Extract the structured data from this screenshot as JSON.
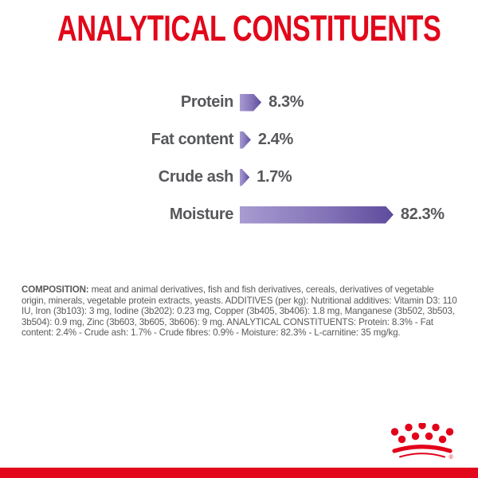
{
  "title": "ANALYTICAL CONSTITUENTS",
  "chart_data": {
    "type": "bar",
    "orientation": "horizontal",
    "title": "ANALYTICAL CONSTITUENTS",
    "unit": "%",
    "categories": [
      "Protein",
      "Fat content",
      "Crude ash",
      "Moisture"
    ],
    "values": [
      8.3,
      2.4,
      1.7,
      82.3
    ],
    "rows": [
      {
        "label": "Protein",
        "value": 8.3,
        "display": "8.3%"
      },
      {
        "label": "Fat content",
        "value": 2.4,
        "display": "2.4%"
      },
      {
        "label": "Crude ash",
        "value": 1.7,
        "display": "1.7%"
      },
      {
        "label": "Moisture",
        "value": 82.3,
        "display": "82.3%"
      }
    ],
    "bar_color_start": "#a79bd1",
    "bar_color_end": "#5e4b9d",
    "legend": "none",
    "grid": false
  },
  "composition": {
    "label": "COMPOSITION:",
    "text": " meat and animal derivatives, fish and fish derivatives, cereals, derivatives of vegetable origin, minerals, vegetable protein extracts, yeasts. ADDITIVES (per kg): Nutritional additives: Vitamin D3: 110 IU, Iron (3b103): 3 mg, Iodine (3b202): 0.23 mg, Copper (3b405, 3b406): 1.8 mg, Manganese (3b502, 3b503, 3b504): 0.9 mg, Zinc (3b603, 3b605, 3b606): 9 mg. ANALYTICAL CONSTITUENTS: Protein: 8.3% - Fat content: 2.4% - Crude ash: 1.7% - Crude fibres: 0.9% - Moisture: 82.3% - L-carnitine: 35 mg/kg."
  },
  "footer": {
    "logo": "royal-canin-crown-logo",
    "registered_mark": "®"
  },
  "colors": {
    "brand_red": "#e2071a",
    "text_gray": "#58595b",
    "bar_purple_light": "#a79bd1",
    "bar_purple_dark": "#5e4b9d"
  }
}
